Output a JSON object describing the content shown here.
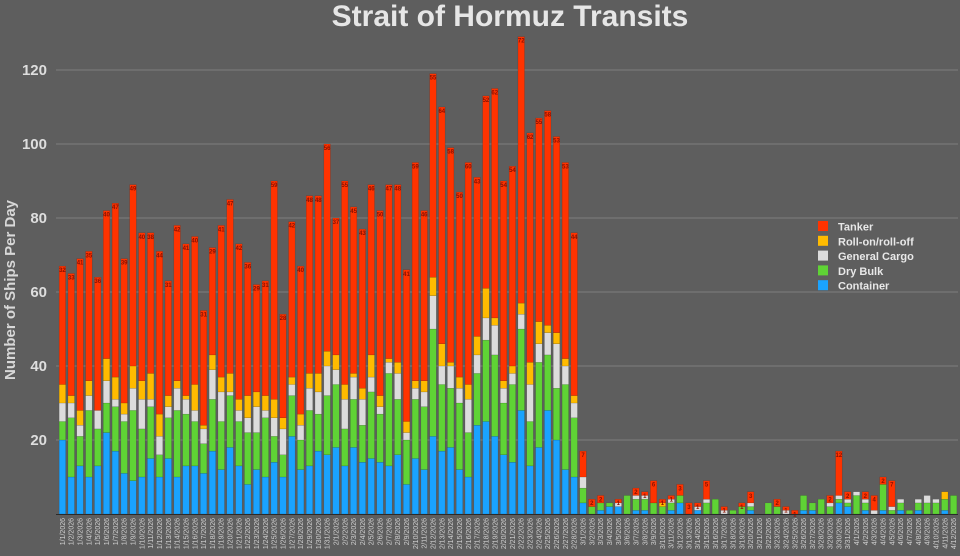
{
  "chart_data": {
    "type": "bar",
    "stacked": true,
    "title": "Strait of Hormuz Transits",
    "xlabel": "",
    "ylabel": "Number of Ships Per Day",
    "ylim": [
      0,
      130
    ],
    "yticks": [
      20,
      40,
      60,
      80,
      100,
      120
    ],
    "grid": true,
    "legend_position": "right",
    "data_labels": "Tanker",
    "categories": [
      "1/1/2026",
      "1/2/2026",
      "1/3/2026",
      "1/4/2026",
      "1/5/2026",
      "1/6/2026",
      "1/7/2026",
      "1/8/2026",
      "1/9/2026",
      "1/10/2026",
      "1/11/2026",
      "1/12/2026",
      "1/13/2026",
      "1/14/2026",
      "1/15/2026",
      "1/16/2026",
      "1/17/2026",
      "1/18/2026",
      "1/19/2026",
      "1/20/2026",
      "1/21/2026",
      "1/22/2026",
      "1/23/2026",
      "1/24/2026",
      "1/25/2026",
      "1/26/2026",
      "1/27/2026",
      "1/28/2026",
      "1/29/2026",
      "1/30/2026",
      "1/31/2026",
      "2/1/2026",
      "2/2/2026",
      "2/3/2026",
      "2/4/2026",
      "2/5/2026",
      "2/6/2026",
      "2/7/2026",
      "2/8/2026",
      "2/9/2026",
      "2/10/2026",
      "2/11/2026",
      "2/12/2026",
      "2/13/2026",
      "2/14/2026",
      "2/15/2026",
      "2/16/2026",
      "2/17/2026",
      "2/18/2026",
      "2/19/2026",
      "2/20/2026",
      "2/21/2026",
      "2/22/2026",
      "2/23/2026",
      "2/24/2026",
      "2/25/2026",
      "2/26/2026",
      "2/27/2026",
      "2/28/2026",
      "3/1/2026",
      "3/2/2026",
      "3/3/2026",
      "3/4/2026",
      "3/5/2026",
      "3/6/2026",
      "3/7/2026",
      "3/8/2026",
      "3/9/2026",
      "3/10/2026",
      "3/11/2026",
      "3/12/2026",
      "3/13/2026",
      "3/14/2026",
      "3/15/2026",
      "3/16/2026",
      "3/17/2026",
      "3/18/2026",
      "3/19/2026",
      "3/20/2026",
      "3/21/2026",
      "3/22/2026",
      "3/23/2026",
      "3/24/2026",
      "3/25/2026",
      "3/26/2026",
      "3/27/2026",
      "3/28/2026",
      "3/29/2026",
      "3/30/2026",
      "3/31/2026",
      "4/1/2026",
      "4/2/2026",
      "4/3/2026",
      "4/4/2026",
      "4/5/2026",
      "4/6/2026",
      "4/7/2026",
      "4/8/2026",
      "4/9/2026",
      "4/10/2026",
      "4/11/2026",
      "4/12/2026"
    ],
    "series": [
      {
        "name": "Container",
        "color": "#1aa3ff",
        "values": [
          20,
          10,
          13,
          10,
          13,
          22,
          17,
          11,
          9,
          10,
          15,
          10,
          15,
          10,
          13,
          13,
          11,
          17,
          12,
          18,
          13,
          8,
          12,
          10,
          14,
          10,
          21,
          12,
          13,
          17,
          16,
          18,
          13,
          18,
          14,
          15,
          14,
          13,
          16,
          8,
          15,
          12,
          21,
          17,
          18,
          12,
          10,
          24,
          25,
          21,
          16,
          14,
          28,
          13,
          18,
          28,
          20,
          12,
          10,
          3,
          0,
          1,
          2,
          2,
          0,
          1,
          1,
          0,
          0,
          1,
          3,
          0,
          1,
          0,
          0,
          0,
          0,
          0,
          1,
          0,
          0,
          0,
          0,
          0,
          1,
          1,
          0,
          0,
          3,
          2,
          0,
          1,
          0,
          1,
          0,
          1,
          0,
          1,
          0,
          0,
          1,
          0
        ]
      },
      {
        "name": "Dry Bulk",
        "color": "#5fd335",
        "values": [
          5,
          16,
          8,
          18,
          10,
          8,
          12,
          14,
          19,
          13,
          14,
          6,
          11,
          18,
          14,
          12,
          8,
          14,
          13,
          14,
          12,
          14,
          10,
          16,
          7,
          6,
          11,
          8,
          15,
          10,
          16,
          17,
          10,
          13,
          10,
          18,
          13,
          25,
          15,
          12,
          16,
          17,
          29,
          18,
          16,
          18,
          12,
          14,
          22,
          22,
          14,
          21,
          22,
          12,
          23,
          15,
          14,
          23,
          16,
          4,
          2,
          2,
          1,
          0,
          5,
          3,
          3,
          3,
          2,
          2,
          2,
          0,
          0,
          3,
          4,
          0,
          1,
          2,
          1,
          0,
          3,
          2,
          0,
          0,
          4,
          2,
          4,
          2,
          1,
          1,
          5,
          2,
          0,
          7,
          1,
          2,
          1,
          2,
          3,
          3,
          3,
          5
        ]
      },
      {
        "name": "General Cargo",
        "color": "#dcdcdc",
        "values": [
          5,
          4,
          3,
          4,
          5,
          6,
          2,
          2,
          6,
          8,
          2,
          5,
          3,
          6,
          4,
          3,
          4,
          8,
          8,
          1,
          3,
          4,
          7,
          2,
          5,
          7,
          3,
          4,
          6,
          6,
          8,
          4,
          8,
          6,
          7,
          4,
          2,
          3,
          7,
          2,
          3,
          4,
          9,
          5,
          6,
          4,
          9,
          5,
          6,
          8,
          4,
          3,
          4,
          10,
          5,
          6,
          12,
          5,
          4,
          3,
          0,
          0,
          0,
          1,
          0,
          1,
          1,
          0,
          0,
          1,
          0,
          0,
          1,
          1,
          0,
          1,
          0,
          0,
          1,
          0,
          0,
          0,
          1,
          0,
          0,
          0,
          0,
          1,
          1,
          1,
          1,
          1,
          1,
          0,
          1,
          1,
          0,
          1,
          2,
          1,
          0,
          0
        ]
      },
      {
        "name": "Roll-on/roll-off",
        "color": "#ffbb00",
        "values": [
          5,
          2,
          4,
          4,
          0,
          6,
          6,
          3,
          6,
          5,
          7,
          6,
          3,
          2,
          1,
          7,
          1,
          4,
          4,
          5,
          3,
          6,
          4,
          4,
          5,
          3,
          2,
          3,
          4,
          5,
          4,
          4,
          4,
          1,
          3,
          6,
          3,
          1,
          3,
          3,
          2,
          3,
          5,
          6,
          1,
          3,
          4,
          5,
          8,
          2,
          2,
          2,
          3,
          6,
          6,
          2,
          3,
          2,
          2,
          0,
          0,
          0,
          0,
          0,
          0,
          0,
          0,
          0,
          1,
          0,
          0,
          0,
          0,
          0,
          0,
          0,
          0,
          0,
          0,
          0,
          0,
          0,
          0,
          0,
          0,
          0,
          0,
          0,
          0,
          0,
          0,
          0,
          0,
          0,
          0,
          0,
          0,
          0,
          0,
          0,
          2,
          0
        ]
      },
      {
        "name": "Tanker",
        "color": "#ff3300",
        "values": [
          32,
          33,
          41,
          35,
          36,
          40,
          47,
          39,
          49,
          40,
          38,
          44,
          31,
          42,
          41,
          40,
          31,
          29,
          41,
          47,
          42,
          36,
          29,
          31,
          59,
          28,
          42,
          40,
          48,
          48,
          56,
          37,
          55,
          45,
          43,
          46,
          50,
          47,
          48,
          41,
          59,
          46,
          55,
          64,
          58,
          50,
          60,
          43,
          52,
          62,
          54,
          54,
          72,
          62,
          55,
          58,
          53,
          53,
          44,
          7,
          2,
          2,
          0,
          1,
          0,
          2,
          1,
          6,
          1,
          1,
          3,
          3,
          1,
          5,
          0,
          1,
          0,
          1,
          3,
          0,
          0,
          2,
          1,
          1,
          0,
          0,
          0,
          2,
          12,
          2,
          0,
          2,
          4,
          2,
          7,
          0,
          0,
          0,
          0,
          0,
          0,
          0
        ]
      }
    ],
    "legend": [
      "Tanker",
      "Roll-on/roll-off",
      "General Cargo",
      "Dry Bulk",
      "Container"
    ]
  }
}
